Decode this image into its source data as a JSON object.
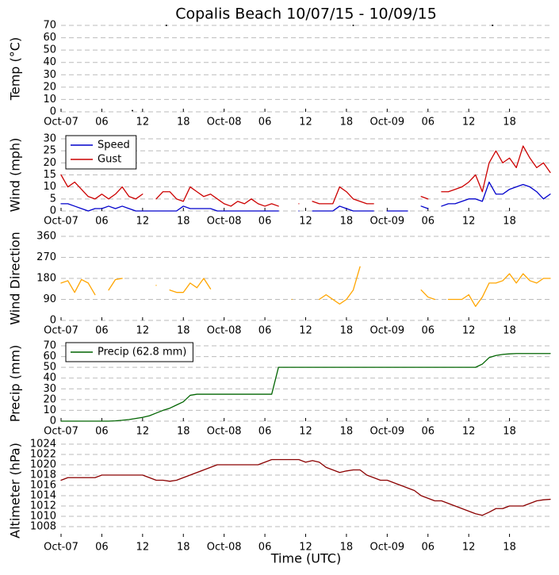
{
  "chart_data": [
    {
      "type": "scatter",
      "title": "Copalis Beach 10/07/15 - 10/09/15",
      "y_label": "Temp (°C)",
      "xlim": [
        0,
        72
      ],
      "ylim": [
        0,
        70
      ],
      "yticks": [
        0,
        10,
        20,
        30,
        40,
        50,
        60,
        70
      ],
      "grid": true,
      "xticks": [
        {
          "value": 0,
          "label": "Oct-07"
        },
        {
          "value": 6,
          "label": "06"
        },
        {
          "value": 12,
          "label": "12"
        },
        {
          "value": 18,
          "label": "18"
        },
        {
          "value": 24,
          "label": "Oct-08"
        },
        {
          "value": 30,
          "label": "06"
        },
        {
          "value": 36,
          "label": "12"
        },
        {
          "value": 42,
          "label": "18"
        },
        {
          "value": 48,
          "label": "Oct-09"
        },
        {
          "value": 54,
          "label": "06"
        },
        {
          "value": 60,
          "label": "12"
        },
        {
          "value": 66,
          "label": "18"
        }
      ],
      "x": [
        10.5,
        15.5,
        43,
        63.5
      ],
      "series": [
        {
          "color": "#000000",
          "values": [
            1,
            70,
            70,
            70
          ]
        }
      ]
    },
    {
      "type": "line",
      "y_label": "Wind (mph)",
      "legend": "upper left",
      "xlim": [
        0,
        72
      ],
      "ylim": [
        0,
        30
      ],
      "yticks": [
        0,
        5,
        10,
        15,
        20,
        25,
        30
      ],
      "grid": true,
      "xticks": [
        {
          "value": 0,
          "label": "Oct-07"
        },
        {
          "value": 6,
          "label": "06"
        },
        {
          "value": 12,
          "label": "12"
        },
        {
          "value": 18,
          "label": "18"
        },
        {
          "value": 24,
          "label": "Oct-08"
        },
        {
          "value": 30,
          "label": "06"
        },
        {
          "value": 36,
          "label": "12"
        },
        {
          "value": 42,
          "label": "18"
        },
        {
          "value": 48,
          "label": "Oct-09"
        },
        {
          "value": 54,
          "label": "06"
        },
        {
          "value": 60,
          "label": "12"
        },
        {
          "value": 66,
          "label": "18"
        }
      ],
      "x": [
        0,
        1,
        2,
        3,
        4,
        5,
        6,
        7,
        8,
        9,
        10,
        11,
        12,
        13,
        14,
        15,
        16,
        17,
        18,
        19,
        20,
        21,
        22,
        23,
        24,
        25,
        26,
        27,
        28,
        29,
        30,
        31,
        32,
        33,
        34,
        35,
        36,
        37,
        38,
        39,
        40,
        41,
        42,
        43,
        44,
        45,
        46,
        47,
        48,
        49,
        50,
        51,
        52,
        53,
        54,
        55,
        56,
        57,
        58,
        59,
        60,
        61,
        62,
        63,
        64,
        65,
        66,
        67,
        68,
        69,
        70,
        71,
        72
      ],
      "series": [
        {
          "name": "Speed",
          "color": "#0000cc",
          "values": [
            3,
            3,
            2,
            1,
            0,
            1,
            1,
            2,
            1,
            2,
            1,
            0,
            0,
            0,
            0,
            0,
            0,
            0,
            2,
            1,
            1,
            1,
            1,
            0,
            0,
            0,
            0,
            0,
            0,
            0,
            0,
            0,
            0,
            null,
            null,
            0,
            null,
            0,
            0,
            0,
            0,
            2,
            1,
            0,
            0,
            0,
            0,
            null,
            0,
            0,
            0,
            0,
            null,
            2,
            1,
            null,
            2,
            3,
            3,
            4,
            5,
            5,
            4,
            12,
            7,
            7,
            9,
            10,
            11,
            10,
            8,
            5,
            7
          ]
        },
        {
          "name": "Gust",
          "color": "#cc0000",
          "values": [
            15,
            10,
            12,
            9,
            6,
            5,
            7,
            5,
            7,
            10,
            6,
            5,
            7,
            null,
            5,
            8,
            8,
            5,
            4,
            10,
            8,
            6,
            7,
            5,
            3,
            2,
            4,
            3,
            5,
            3,
            2,
            3,
            2,
            null,
            null,
            3,
            null,
            4,
            3,
            3,
            3,
            10,
            8,
            5,
            4,
            3,
            3,
            null,
            null,
            null,
            null,
            null,
            null,
            6,
            5,
            null,
            8,
            8,
            9,
            10,
            12,
            15,
            8,
            20,
            25,
            20,
            22,
            18,
            27,
            22,
            18,
            20,
            16
          ]
        }
      ]
    },
    {
      "type": "line",
      "y_label": "Wind Direction",
      "xlim": [
        0,
        72
      ],
      "ylim": [
        0,
        360
      ],
      "yticks": [
        0,
        90,
        180,
        270,
        360
      ],
      "grid": true,
      "xticks": [
        {
          "value": 0,
          "label": "Oct-07"
        },
        {
          "value": 6,
          "label": "06"
        },
        {
          "value": 12,
          "label": "12"
        },
        {
          "value": 18,
          "label": "18"
        },
        {
          "value": 24,
          "label": "Oct-08"
        },
        {
          "value": 30,
          "label": "06"
        },
        {
          "value": 36,
          "label": "12"
        },
        {
          "value": 42,
          "label": "18"
        },
        {
          "value": 48,
          "label": "Oct-09"
        },
        {
          "value": 54,
          "label": "06"
        },
        {
          "value": 60,
          "label": "12"
        },
        {
          "value": 66,
          "label": "18"
        }
      ],
      "x": [
        0,
        1,
        2,
        3,
        4,
        5,
        6,
        7,
        8,
        9,
        10,
        11,
        12,
        13,
        14,
        15,
        16,
        17,
        18,
        19,
        20,
        21,
        22,
        23,
        24,
        25,
        26,
        27,
        28,
        29,
        30,
        31,
        32,
        33,
        34,
        35,
        36,
        37,
        38,
        39,
        40,
        41,
        42,
        43,
        44,
        45,
        46,
        47,
        48,
        49,
        50,
        51,
        52,
        53,
        54,
        55,
        56,
        57,
        58,
        59,
        60,
        61,
        62,
        63,
        64,
        65,
        66,
        67,
        68,
        69,
        70,
        71,
        72
      ],
      "series": [
        {
          "color": "#ffa500",
          "values": [
            160,
            170,
            120,
            175,
            160,
            110,
            null,
            130,
            175,
            180,
            null,
            null,
            null,
            null,
            150,
            null,
            130,
            120,
            120,
            160,
            140,
            180,
            135,
            null,
            null,
            null,
            null,
            null,
            null,
            null,
            null,
            null,
            null,
            null,
            90,
            null,
            null,
            null,
            90,
            110,
            90,
            70,
            90,
            130,
            230,
            null,
            null,
            null,
            null,
            null,
            null,
            null,
            null,
            130,
            100,
            90,
            null,
            90,
            90,
            90,
            110,
            60,
            100,
            160,
            160,
            170,
            200,
            160,
            200,
            170,
            160,
            180,
            180
          ]
        }
      ]
    },
    {
      "type": "line",
      "y_label": "Precip (mm)",
      "legend": "upper left",
      "xlim": [
        0,
        72
      ],
      "ylim": [
        0,
        70
      ],
      "yticks": [
        0,
        10,
        20,
        30,
        40,
        50,
        60,
        70
      ],
      "grid": true,
      "xticks": [
        {
          "value": 0,
          "label": "Oct-07"
        },
        {
          "value": 6,
          "label": "06"
        },
        {
          "value": 12,
          "label": "12"
        },
        {
          "value": 18,
          "label": "18"
        },
        {
          "value": 24,
          "label": "Oct-08"
        },
        {
          "value": 30,
          "label": "06"
        },
        {
          "value": 36,
          "label": "12"
        },
        {
          "value": 42,
          "label": "18"
        },
        {
          "value": 48,
          "label": "Oct-09"
        },
        {
          "value": 54,
          "label": "06"
        },
        {
          "value": 60,
          "label": "12"
        },
        {
          "value": 66,
          "label": "18"
        }
      ],
      "x": [
        0,
        1,
        2,
        3,
        4,
        5,
        6,
        7,
        8,
        9,
        10,
        11,
        12,
        13,
        14,
        15,
        16,
        17,
        18,
        19,
        20,
        21,
        22,
        23,
        24,
        25,
        26,
        27,
        28,
        29,
        30,
        31,
        32,
        33,
        34,
        35,
        36,
        37,
        38,
        39,
        40,
        41,
        42,
        43,
        44,
        45,
        46,
        47,
        48,
        49,
        50,
        51,
        52,
        53,
        54,
        55,
        56,
        57,
        58,
        59,
        60,
        61,
        62,
        63,
        64,
        65,
        66,
        67,
        68,
        69,
        70,
        71,
        72
      ],
      "series": [
        {
          "name": "Precip (62.8 mm)",
          "color": "#006400",
          "values": [
            0,
            0,
            0,
            0,
            0,
            0,
            0,
            0,
            0.3,
            0.8,
            1.5,
            2.5,
            3.5,
            5,
            7.5,
            10,
            12,
            15,
            18,
            24,
            25,
            25,
            25,
            25,
            25,
            25,
            25,
            25,
            25,
            25,
            25,
            25,
            50,
            50,
            50,
            50,
            50,
            50,
            50,
            50,
            50,
            50,
            50,
            50,
            50,
            50,
            50,
            50,
            50,
            50,
            50,
            50,
            50,
            50,
            50,
            50,
            50,
            50,
            50,
            50,
            50,
            50,
            53,
            59,
            61,
            62,
            62.5,
            62.8,
            62.8,
            62.8,
            62.8,
            62.8,
            62.8
          ]
        }
      ]
    },
    {
      "type": "line",
      "y_label": "Altimeter (hPa)",
      "x_label": "Time (UTC)",
      "xlim": [
        0,
        72
      ],
      "ylim": [
        1006,
        1024
      ],
      "yticks": [
        1008,
        1010,
        1012,
        1014,
        1016,
        1018,
        1020,
        1022,
        1024
      ],
      "grid": true,
      "xticks": [
        {
          "value": 0,
          "label": "Oct-07"
        },
        {
          "value": 6,
          "label": "06"
        },
        {
          "value": 12,
          "label": "12"
        },
        {
          "value": 18,
          "label": "18"
        },
        {
          "value": 24,
          "label": "Oct-08"
        },
        {
          "value": 30,
          "label": "06"
        },
        {
          "value": 36,
          "label": "12"
        },
        {
          "value": 42,
          "label": "18"
        },
        {
          "value": 48,
          "label": "Oct-09"
        },
        {
          "value": 54,
          "label": "06"
        },
        {
          "value": 60,
          "label": "12"
        },
        {
          "value": 66,
          "label": "18"
        }
      ],
      "x": [
        0,
        1,
        2,
        3,
        4,
        5,
        6,
        7,
        8,
        9,
        10,
        11,
        12,
        13,
        14,
        15,
        16,
        17,
        18,
        19,
        20,
        21,
        22,
        23,
        24,
        25,
        26,
        27,
        28,
        29,
        30,
        31,
        32,
        33,
        34,
        35,
        36,
        37,
        38,
        39,
        40,
        41,
        42,
        43,
        44,
        45,
        46,
        47,
        48,
        49,
        50,
        51,
        52,
        53,
        54,
        55,
        56,
        57,
        58,
        59,
        60,
        61,
        62,
        63,
        64,
        65,
        66,
        67,
        68,
        69,
        70,
        71,
        72
      ],
      "series": [
        {
          "color": "#8b0000",
          "values": [
            1017,
            1017.5,
            1017.5,
            1017.5,
            1017.5,
            1017.5,
            1018,
            1018,
            1018,
            1018,
            1018,
            1018,
            1018,
            1017.5,
            1017,
            1017,
            1016.8,
            1017,
            1017.5,
            1018,
            1018.5,
            1019,
            1019.5,
            1020,
            1020,
            1020,
            1020,
            1020,
            1020,
            1020,
            1020.5,
            1021,
            1021,
            1021,
            1021,
            1021,
            1020.5,
            1020.8,
            1020.5,
            1019.5,
            1019,
            1018.5,
            1018.8,
            1019,
            1019,
            1018,
            1017.5,
            1017,
            1017,
            1016.5,
            1016,
            1015.5,
            1015,
            1014,
            1013.5,
            1013,
            1013,
            1012.5,
            1012,
            1011.5,
            1011,
            1010.5,
            1010.2,
            1010.8,
            1011.5,
            1011.5,
            1012,
            1012,
            1012,
            1012.5,
            1013,
            1013.2,
            1013.3
          ]
        }
      ]
    }
  ]
}
